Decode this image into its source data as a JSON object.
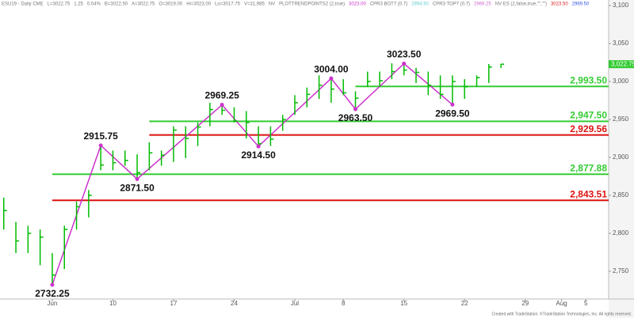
{
  "chart_data": {
    "type": "ohlc",
    "header": [
      {
        "text": "ESU19 - Daily CME",
        "color": "#777777"
      },
      {
        "text": "L=3022.75",
        "color": "#777777"
      },
      {
        "text": "1.25",
        "color": "#777777"
      },
      {
        "text": "0.04%",
        "color": "#777777"
      },
      {
        "text": "B=3022.50",
        "color": "#777777"
      },
      {
        "text": "A=3022.75",
        "color": "#777777"
      },
      {
        "text": "O=3019.00",
        "color": "#777777"
      },
      {
        "text": "Hi=3023.00",
        "color": "#777777"
      },
      {
        "text": "Lo=3017.75",
        "color": "#777777"
      },
      {
        "text": "V=31,985",
        "color": "#777777"
      },
      {
        "text": "NV",
        "color": "#777777"
      },
      {
        "text": "PLOTTRENDPOINTS2 (2,true)",
        "color": "#777777"
      },
      {
        "text": "3023.00",
        "color": "#cc33cc"
      },
      {
        "text": "CPR3 BOT7 (0.7)",
        "color": "#777777"
      },
      {
        "text": "2894.50",
        "color": "#66cccc"
      },
      {
        "text": "CPR3 TOP7 (0.7)",
        "color": "#777777"
      },
      {
        "text": "2969.25",
        "color": "#cc66cc"
      },
      {
        "text": "NV ES (2,false,true,\"\",\"\")",
        "color": "#777777"
      },
      {
        "text": "3023.50",
        "color": "#dd2222"
      },
      {
        "text": "2969.50",
        "color": "#3355dd"
      }
    ],
    "x": [
      -4,
      -3,
      -2,
      -1,
      0,
      1,
      2,
      3,
      4,
      5,
      6,
      7,
      8,
      9,
      10,
      11,
      12,
      13,
      14,
      15,
      16,
      17,
      18,
      19,
      20,
      21,
      22,
      23,
      24,
      25,
      26,
      27,
      28,
      29,
      30,
      31,
      32,
      33,
      34,
      35,
      36,
      37
    ],
    "high": [
      2847,
      2815,
      2810,
      2805,
      2774,
      2810,
      2842,
      2857,
      2915.75,
      2909,
      2909,
      2904,
      2920,
      2909,
      2941,
      2941,
      2946,
      2972,
      2969.25,
      2966,
      2961,
      2941,
      2941,
      2956,
      2982,
      2992,
      3008,
      3004,
      3003,
      2987,
      3013,
      3013,
      3024,
      3023.5,
      3018,
      3013,
      3008,
      3008,
      3003,
      3008,
      3023,
      3023
    ],
    "low": [
      2805,
      2774,
      2774,
      2758,
      2732.25,
      2753,
      2805,
      2821,
      2883,
      2883,
      2889,
      2871.5,
      2883,
      2889,
      2894,
      2899,
      2915,
      2941,
      2956,
      2946,
      2925,
      2914.5,
      2915,
      2935,
      2956,
      2966,
      2977,
      2972,
      2982,
      2963.5,
      2993,
      2993,
      3003,
      3008,
      2998,
      2982,
      2977,
      2969.5,
      2977,
      2993,
      2998,
      3017.75
    ],
    "close": [
      2830,
      2790,
      2800,
      2795,
      2745,
      2805,
      2835,
      2850,
      2890,
      2893,
      2896,
      2880,
      2906,
      2903,
      2936,
      2925,
      2940,
      2963,
      2962,
      2948,
      2946,
      2918,
      2924,
      2950,
      2972,
      2983,
      2995,
      2990,
      2985,
      2978,
      3000,
      3001,
      3013,
      3015,
      3012,
      2995,
      2983,
      3000,
      2993,
      3005,
      3019,
      3022.75
    ],
    "color": "#00bb00",
    "swing_points": {
      "x": [
        0,
        4,
        7,
        14,
        17,
        23,
        25,
        29,
        33
      ],
      "values": [
        2732.25,
        2915.75,
        2871.5,
        2969.25,
        2914.5,
        3004,
        2963.5,
        3023.5,
        2969.5
      ],
      "value_labels": [
        "2732.25",
        "2915.75",
        "2871.50",
        "2969.25",
        "2914.50",
        "3004.00",
        "2963.50",
        "3023.50",
        "2969.50"
      ],
      "color": "#cc33cc"
    },
    "levels": [
      {
        "value": 2993.5,
        "value_label": "2,993.50",
        "color": "#33cc33",
        "x_start": 25
      },
      {
        "value": 2947.5,
        "value_label": "2,947.50",
        "color": "#33cc33",
        "x_start": 8
      },
      {
        "value": 2929.56,
        "value_label": "2,929.56",
        "color": "#dd1111",
        "x_start": 8
      },
      {
        "value": 2877.88,
        "value_label": "2,877.88",
        "color": "#33cc33",
        "x_start": 0
      },
      {
        "value": 2843.51,
        "value_label": "2,843.51",
        "color": "#dd1111",
        "x_start": 0
      }
    ],
    "last_price": {
      "value": 3022.75,
      "label": "3,022.75",
      "color": "#33cc33"
    },
    "xlim": [
      -4.31,
      45.88
    ],
    "ylim": [
      2713.5,
      3107.3
    ],
    "xticks": [
      {
        "value": 0,
        "label": "Jun"
      },
      {
        "value": 5,
        "label": "10"
      },
      {
        "value": 10,
        "label": "17"
      },
      {
        "value": 15,
        "label": "24"
      },
      {
        "value": 20,
        "label": "Jul"
      },
      {
        "value": 24,
        "label": "8"
      },
      {
        "value": 29,
        "label": "15"
      },
      {
        "value": 34,
        "label": "22"
      },
      {
        "value": 39,
        "label": "29"
      },
      {
        "value": 42,
        "label": "Aug"
      },
      {
        "value": 44,
        "label": "5"
      }
    ],
    "yticks": [
      {
        "value": 3100,
        "label": "3,100"
      },
      {
        "value": 3050,
        "label": "3,050"
      },
      {
        "value": 3000,
        "label": "3,000"
      },
      {
        "value": 2950,
        "label": "2,950"
      },
      {
        "value": 2900,
        "label": "2,900"
      },
      {
        "value": 2850,
        "label": "2,850"
      },
      {
        "value": 2800,
        "label": "2,800"
      },
      {
        "value": 2750,
        "label": "2,750"
      }
    ],
    "footer": "Created with TradeStation. ©TradeStation Technologies, Inc. All rights reserved."
  }
}
